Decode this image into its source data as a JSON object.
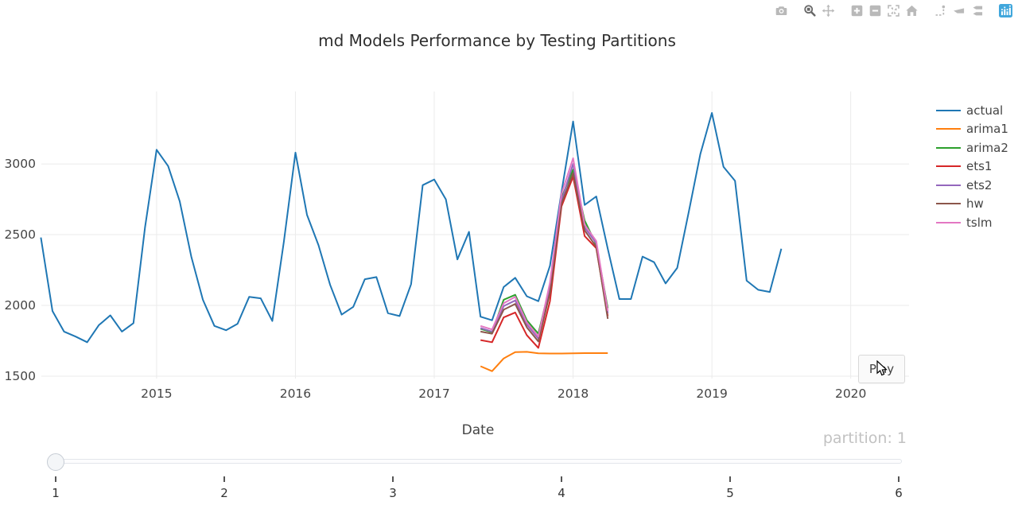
{
  "title": "md Models Performance by Testing Partitions",
  "modebar": {
    "icons": [
      {
        "id": "camera",
        "name": "camera-icon",
        "active": false
      },
      {
        "id": "boxzoom",
        "name": "box-zoom-icon",
        "active": true
      },
      {
        "id": "pan",
        "name": "pan-icon",
        "active": false
      },
      {
        "id": "zoomin",
        "name": "zoom-in-icon",
        "active": false
      },
      {
        "id": "zoomout",
        "name": "zoom-out-icon",
        "active": false
      },
      {
        "id": "autoscale",
        "name": "autoscale-icon",
        "active": false
      },
      {
        "id": "home",
        "name": "reset-axes-icon",
        "active": false
      },
      {
        "id": "spikelines",
        "name": "spikelines-icon",
        "active": false
      },
      {
        "id": "hoverclosest",
        "name": "hover-closest-icon",
        "active": false
      },
      {
        "id": "hovercompare",
        "name": "hover-compare-icon",
        "active": false
      },
      {
        "id": "plotlylogo",
        "name": "plotly-logo-icon",
        "active": false
      }
    ]
  },
  "chart_data": {
    "type": "line",
    "title": "md Models Performance by Testing Partitions",
    "xlabel": "Date",
    "ylabel": "",
    "frequency": "monthly",
    "grid": true,
    "legend_position": "right",
    "xaxis": {
      "tick_values": [
        2015,
        2016,
        2017,
        2018,
        2019,
        2020
      ],
      "tick_labels": [
        "2015",
        "2016",
        "2017",
        "2018",
        "2019",
        "2020"
      ],
      "range": [
        2014.17,
        2020.42
      ]
    },
    "yaxis": {
      "tick_values": [
        1500,
        2000,
        2500,
        3000
      ],
      "tick_labels": [
        "1500",
        "2000",
        "2500",
        "3000"
      ],
      "range": [
        1483,
        3512
      ]
    },
    "series": [
      {
        "name": "actual",
        "color": "#1f77b4",
        "x_start": "2014-03",
        "x0": 2014.1667,
        "values": [
          2480,
          1960,
          1815,
          1780,
          1740,
          1860,
          1930,
          1815,
          1875,
          2550,
          3100,
          2985,
          2735,
          2345,
          2040,
          1855,
          1825,
          1870,
          2060,
          2050,
          1890,
          2450,
          3080,
          2640,
          2425,
          2145,
          1935,
          1990,
          2185,
          2200,
          1945,
          1925,
          2150,
          2850,
          2890,
          2750,
          2325,
          2520,
          1920,
          1895,
          2130,
          2195,
          2065,
          2030,
          2280,
          2800,
          3300,
          2710,
          2770,
          2400,
          2045,
          2045,
          2345,
          2305,
          2155,
          2265,
          2660,
          3070,
          3360,
          2980,
          2880,
          2175,
          2110,
          2095,
          2400
        ]
      },
      {
        "name": "arima1",
        "color": "#ff7f0e",
        "x_start": "2017-05",
        "x0": 2017.3333,
        "values": [
          1570,
          1535,
          1625,
          1670,
          1672,
          1662,
          1660,
          1660,
          1662,
          1663,
          1663,
          1663
        ]
      },
      {
        "name": "arima2",
        "color": "#2ca02c",
        "x_start": "2017-05",
        "x0": 2017.3333,
        "values": [
          1835,
          1810,
          2040,
          2075,
          1895,
          1800,
          2140,
          2760,
          2960,
          2600,
          2430,
          1980
        ]
      },
      {
        "name": "ets1",
        "color": "#d62728",
        "x_start": "2017-05",
        "x0": 2017.3333,
        "values": [
          1755,
          1740,
          1915,
          1950,
          1790,
          1700,
          2030,
          2700,
          2910,
          2490,
          2405,
          1925
        ]
      },
      {
        "name": "ets2",
        "color": "#9467bd",
        "x_start": "2017-05",
        "x0": 2017.3333,
        "values": [
          1840,
          1815,
          1995,
          2035,
          1865,
          1765,
          2120,
          2740,
          3000,
          2550,
          2440,
          1945
        ]
      },
      {
        "name": "hw",
        "color": "#8c564b",
        "x_start": "2017-05",
        "x0": 2017.3333,
        "values": [
          1815,
          1800,
          1970,
          2010,
          1845,
          1745,
          2090,
          2720,
          2935,
          2530,
          2415,
          1905
        ]
      },
      {
        "name": "tslm",
        "color": "#e377c2",
        "x_start": "2017-05",
        "x0": 2017.3333,
        "values": [
          1855,
          1830,
          2015,
          2060,
          1880,
          1780,
          2160,
          2790,
          3040,
          2570,
          2455,
          1960
        ]
      }
    ]
  },
  "controls": {
    "play_label": "Play"
  },
  "slider": {
    "current_text": "partition: 1",
    "prefix": "partition: ",
    "value": "1",
    "tick_labels": [
      "1",
      "2",
      "3",
      "4",
      "5",
      "6"
    ]
  },
  "colors": {
    "grid": "#ebebeb",
    "tick_text": "#444444",
    "modebar_icon": "#b9b9b9",
    "modebar_icon_active": "#686868",
    "plotly_logo_blue": "#41a7dc",
    "slider_current_text": "#c2c2c2"
  }
}
